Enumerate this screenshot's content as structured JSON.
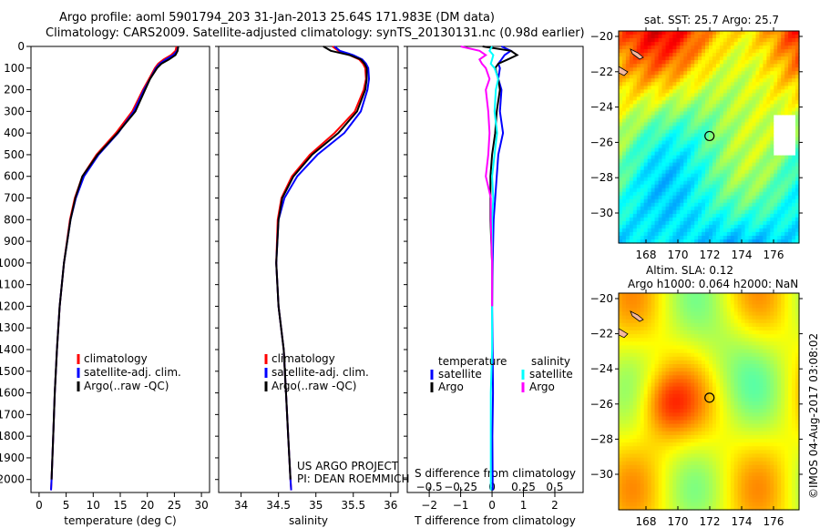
{
  "title_line1": "Argo profile: aoml 5901794_203 31-Jan-2013 25.64S 171.983E (DM data)",
  "title_line2": "Climatology: CARS2009. Satellite-adjusted climatology: synTS_20130131.nc (0.98d earlier)",
  "credit": "©IMOS 04-Aug-2017 03:08:02",
  "project_line1": "US ARGO PROJECT",
  "project_line2": "PI: DEAN ROEMMICH",
  "colors": {
    "climatology": "#ff0000",
    "satellite": "#0000ff",
    "argo": "#000000",
    "sal_satellite": "#00ffff",
    "sal_argo": "#ff00ff"
  },
  "chart_data": [
    {
      "type": "line",
      "id": "temperature",
      "xlabel": "temperature (deg C)",
      "xlim": [
        -1.5,
        31.5
      ],
      "xticks": [
        0,
        5,
        10,
        15,
        20,
        25,
        30
      ],
      "ylim": [
        0,
        2060
      ],
      "yticks": [
        0,
        100,
        200,
        300,
        400,
        500,
        600,
        700,
        800,
        900,
        1000,
        1100,
        1200,
        1300,
        1400,
        1500,
        1600,
        1700,
        1800,
        1900,
        2000
      ],
      "yreversed": true,
      "legend": [
        "climatology",
        "satellite-adj. clim.",
        "Argo(..raw -QC)"
      ],
      "depth": [
        0,
        20,
        40,
        60,
        80,
        100,
        150,
        200,
        300,
        400,
        500,
        600,
        700,
        800,
        1000,
        1200,
        1400,
        1600,
        1800,
        2000,
        2050
      ],
      "series": [
        {
          "name": "climatology",
          "color": "#ff0000",
          "values": [
            25.4,
            25.2,
            24.4,
            23.0,
            22.0,
            21.4,
            20.3,
            19.2,
            17.2,
            14.2,
            10.6,
            8.0,
            6.6,
            5.7,
            4.6,
            3.8,
            3.3,
            2.9,
            2.6,
            2.3,
            2.2
          ]
        },
        {
          "name": "satellite-adj. clim.",
          "color": "#0000ff",
          "values": [
            25.7,
            25.5,
            24.8,
            23.4,
            22.3,
            21.6,
            20.5,
            19.4,
            17.5,
            14.6,
            11.0,
            8.3,
            6.8,
            5.8,
            4.6,
            3.8,
            3.3,
            2.9,
            2.6,
            2.3,
            2.2
          ]
        },
        {
          "name": "Argo(..raw -QC)",
          "color": "#000000",
          "values": [
            25.7,
            25.6,
            25.2,
            24.0,
            22.6,
            21.8,
            20.5,
            19.6,
            17.8,
            14.5,
            10.8,
            8.0,
            6.7,
            5.8,
            4.6,
            3.8,
            3.3,
            2.9,
            2.6,
            2.3,
            null
          ]
        }
      ]
    },
    {
      "type": "line",
      "id": "salinity",
      "xlabel": "salinity",
      "xlim": [
        33.7,
        36.1
      ],
      "xticks": [
        34,
        34.5,
        35,
        35.5,
        36
      ],
      "legend": [
        "climatology",
        "satellite-adj. clim.",
        "Argo(..raw -QC)"
      ],
      "depth": [
        0,
        20,
        40,
        60,
        80,
        100,
        150,
        200,
        300,
        400,
        500,
        600,
        700,
        800,
        1000,
        1200,
        1400,
        1600,
        1800,
        2000,
        2050
      ],
      "series": [
        {
          "name": "climatology",
          "color": "#ff0000",
          "values": [
            35.22,
            35.3,
            35.45,
            35.58,
            35.63,
            35.66,
            35.67,
            35.64,
            35.52,
            35.25,
            34.92,
            34.68,
            34.54,
            34.49,
            34.47,
            34.5,
            34.57,
            34.6,
            34.63,
            34.66,
            34.67
          ]
        },
        {
          "name": "satellite-adj. clim.",
          "color": "#0000ff",
          "values": [
            35.25,
            35.32,
            35.5,
            35.62,
            35.67,
            35.7,
            35.71,
            35.69,
            35.6,
            35.38,
            35.02,
            34.75,
            34.58,
            34.5,
            34.47,
            34.5,
            34.57,
            34.6,
            34.63,
            34.66,
            34.67
          ]
        },
        {
          "name": "Argo(..raw -QC)",
          "color": "#000000",
          "values": [
            35.1,
            35.2,
            35.45,
            35.6,
            35.65,
            35.68,
            35.68,
            35.66,
            35.55,
            35.3,
            34.95,
            34.7,
            34.55,
            34.5,
            34.47,
            34.5,
            34.57,
            34.6,
            34.63,
            34.66,
            null
          ]
        }
      ]
    },
    {
      "type": "line",
      "id": "difference",
      "xlabel": "T difference from climatology",
      "x2label": "S difference from climatology",
      "xlim": [
        -2.7,
        2.9
      ],
      "xticks": [
        -2,
        -1,
        0,
        1,
        2
      ],
      "x2ticks": [
        -0.5,
        -0.25,
        0,
        0.25,
        0.5
      ],
      "legend_temperature_title": "temperature",
      "legend_salinity_title": "salinity",
      "legend": [
        "satellite",
        "Argo",
        "satellite",
        "Argo"
      ],
      "depth": [
        0,
        20,
        40,
        60,
        80,
        100,
        150,
        200,
        300,
        400,
        500,
        600,
        700,
        800,
        1000,
        1200,
        1400,
        1600,
        1800,
        2000,
        2050
      ],
      "series": [
        {
          "name": "T satellite",
          "color": "#0000ff",
          "values": [
            0.3,
            0.6,
            0.4,
            0.3,
            0.2,
            0.25,
            0.2,
            0.3,
            0.25,
            0.35,
            0.2,
            0.15,
            0.1,
            0.05,
            0.02,
            0.0,
            0.02,
            0.03,
            0.01,
            0.02,
            0.02
          ]
        },
        {
          "name": "T Argo",
          "color": "#000000",
          "values": [
            -0.3,
            0.6,
            0.8,
            0.5,
            0.2,
            0.1,
            0.2,
            0.25,
            0.15,
            0.1,
            0.0,
            -0.05,
            -0.05,
            -0.05,
            0.0,
            0.0,
            null,
            null,
            null,
            null,
            null
          ]
        },
        {
          "name": "S satellite",
          "color": "#00ffff",
          "values": [
            0.0,
            -0.02,
            0.01,
            0.0,
            -0.01,
            0.02,
            0.05,
            0.03,
            0.02,
            0.04,
            0.02,
            0.0,
            0.01,
            0.0,
            0.0,
            0.0,
            0.0,
            -0.01,
            -0.01,
            -0.01,
            -0.01
          ]
        },
        {
          "name": "S Argo",
          "color": "#ff00ff",
          "values": [
            -0.25,
            -0.1,
            -0.05,
            -0.1,
            -0.08,
            -0.05,
            -0.02,
            -0.05,
            -0.03,
            -0.02,
            -0.03,
            -0.05,
            -0.01,
            -0.01,
            0.0,
            0.0,
            null,
            null,
            null,
            null,
            null
          ]
        }
      ]
    },
    {
      "type": "heatmap",
      "id": "sst_map",
      "title": "sat. SST: 25.7 Argo: 25.7",
      "xlim": [
        166.3,
        177.7
      ],
      "ylim": [
        -31.6,
        -19.7
      ],
      "xticks": [
        168,
        170,
        172,
        174,
        176
      ],
      "yticks": [
        -20,
        -22,
        -24,
        -26,
        -28,
        -30
      ],
      "marker": {
        "lon": 171.983,
        "lat": -25.64
      }
    },
    {
      "type": "heatmap",
      "id": "sla_map",
      "title_line1": "Altim. SLA: 0.12",
      "title_line2": "Argo h1000: 0.064 h2000: NaN",
      "xlim": [
        166.3,
        177.7
      ],
      "ylim": [
        -31.6,
        -19.7
      ],
      "xticks": [
        168,
        170,
        172,
        174,
        176
      ],
      "yticks": [
        -20,
        -22,
        -24,
        -26,
        -28,
        -30
      ],
      "marker": {
        "lon": 171.983,
        "lat": -25.64
      }
    }
  ]
}
